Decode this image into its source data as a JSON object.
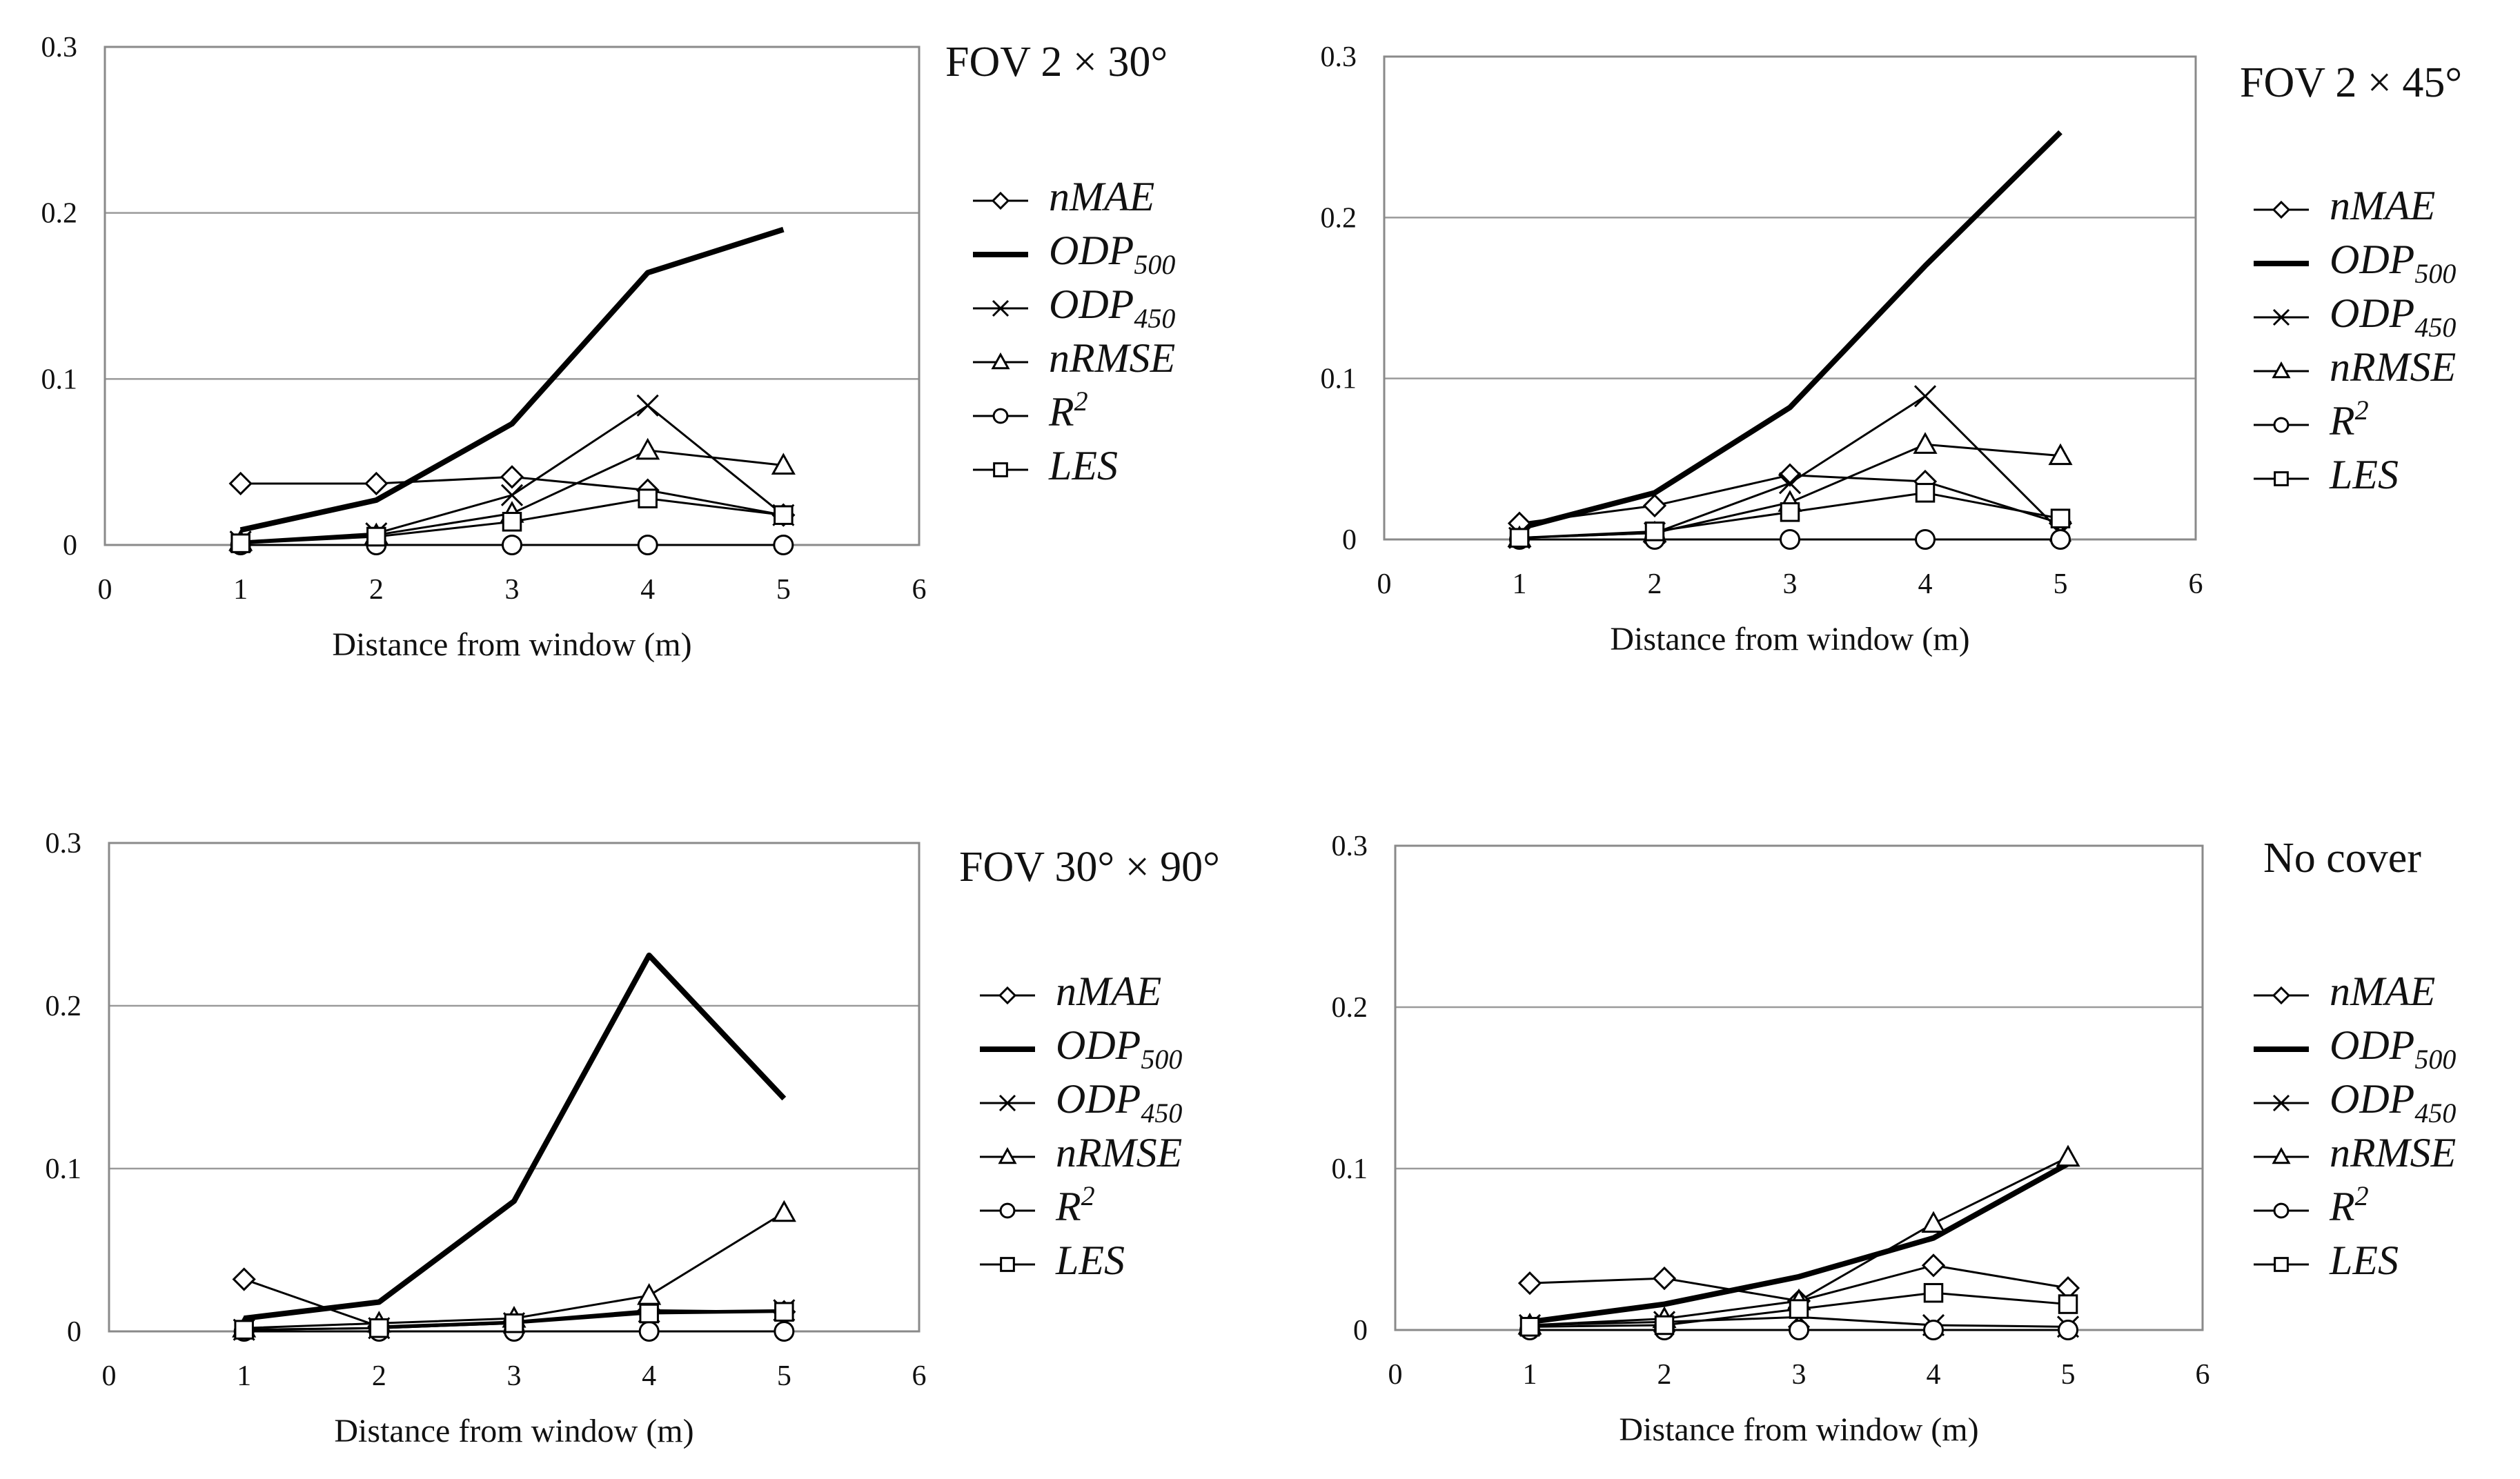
{
  "chart_data": [
    {
      "type": "line",
      "title": "FOV  2 × 30°",
      "xlabel": "Distance from window  (m)",
      "ylabel": "",
      "xlim": [
        0,
        6
      ],
      "ylim": [
        0,
        0.3
      ],
      "xticks": [
        "0",
        "1",
        "2",
        "3",
        "4",
        "5",
        "6"
      ],
      "yticks": [
        "0",
        "0.1",
        "0.2",
        "0.3"
      ],
      "x": [
        1,
        2,
        3,
        4,
        5
      ],
      "series": [
        {
          "key": "nMAE",
          "name": "nMAE",
          "sub": "",
          "marker": "diamond",
          "values": [
            0.037,
            0.037,
            0.041,
            0.033,
            0.018
          ]
        },
        {
          "key": "ODP500",
          "name": "ODP",
          "sub": "500",
          "marker": "none",
          "values": [
            0.009,
            0.027,
            0.073,
            0.164,
            0.19
          ]
        },
        {
          "key": "ODP450",
          "name": "ODP",
          "sub": "450",
          "marker": "x",
          "values": [
            0.002,
            0.007,
            0.03,
            0.084,
            0.018
          ]
        },
        {
          "key": "nRMSE",
          "name": "nRMSE",
          "sub": "",
          "marker": "triangle",
          "values": [
            0.002,
            0.006,
            0.019,
            0.057,
            0.048
          ]
        },
        {
          "key": "R2",
          "name": "R",
          "sub": "",
          "sup": "2",
          "marker": "circle",
          "values": [
            0.0,
            0.0,
            0.0,
            0.0,
            0.0
          ]
        },
        {
          "key": "LES",
          "name": "LES",
          "sub": "",
          "marker": "square",
          "values": [
            0.001,
            0.005,
            0.014,
            0.028,
            0.018
          ]
        }
      ]
    },
    {
      "type": "line",
      "title": "FOV  2 × 45°",
      "xlabel": "Distance from window  (m)",
      "ylabel": "",
      "xlim": [
        0,
        6
      ],
      "ylim": [
        0,
        0.3
      ],
      "xticks": [
        "0",
        "1",
        "2",
        "3",
        "4",
        "5",
        "6"
      ],
      "yticks": [
        "0",
        "0.1",
        "0.2",
        "0.3"
      ],
      "x": [
        1,
        2,
        3,
        4,
        5
      ],
      "series": [
        {
          "key": "nMAE",
          "name": "nMAE",
          "sub": "",
          "marker": "diamond",
          "values": [
            0.01,
            0.021,
            0.04,
            0.036,
            0.01
          ]
        },
        {
          "key": "ODP500",
          "name": "ODP",
          "sub": "500",
          "marker": "none",
          "values": [
            0.007,
            0.029,
            0.082,
            0.17,
            0.253
          ]
        },
        {
          "key": "ODP450",
          "name": "ODP",
          "sub": "450",
          "marker": "x",
          "values": [
            0.001,
            0.004,
            0.035,
            0.089,
            0.005
          ]
        },
        {
          "key": "nRMSE",
          "name": "nRMSE",
          "sub": "",
          "marker": "triangle",
          "values": [
            0.001,
            0.004,
            0.023,
            0.059,
            0.052
          ]
        },
        {
          "key": "R2",
          "name": "R",
          "sub": "",
          "sup": "2",
          "marker": "circle",
          "values": [
            0.0,
            0.0,
            0.0,
            0.0,
            0.0
          ]
        },
        {
          "key": "LES",
          "name": "LES",
          "sub": "",
          "marker": "square",
          "values": [
            0.001,
            0.005,
            0.017,
            0.029,
            0.013
          ]
        }
      ]
    },
    {
      "type": "line",
      "title": "FOV  30° × 90°",
      "xlabel": "Distance from window  (m)",
      "ylabel": "",
      "xlim": [
        0,
        6
      ],
      "ylim": [
        0,
        0.3
      ],
      "xticks": [
        "0",
        "1",
        "2",
        "3",
        "4",
        "5",
        "6"
      ],
      "yticks": [
        "0",
        "0.1",
        "0.2",
        "0.3"
      ],
      "x": [
        1,
        2,
        3,
        4,
        5
      ],
      "series": [
        {
          "key": "nMAE",
          "name": "nMAE",
          "sub": "",
          "marker": "diamond",
          "values": [
            0.032,
            0.003,
            0.006,
            0.013,
            0.012
          ]
        },
        {
          "key": "ODP500",
          "name": "ODP",
          "sub": "500",
          "marker": "none",
          "values": [
            0.008,
            0.018,
            0.08,
            0.231,
            0.143
          ]
        },
        {
          "key": "ODP450",
          "name": "ODP",
          "sub": "450",
          "marker": "x",
          "values": [
            0.001,
            0.002,
            0.005,
            0.012,
            0.013
          ]
        },
        {
          "key": "nRMSE",
          "name": "nRMSE",
          "sub": "",
          "marker": "triangle",
          "values": [
            0.002,
            0.005,
            0.008,
            0.022,
            0.073
          ]
        },
        {
          "key": "R2",
          "name": "R",
          "sub": "",
          "sup": "2",
          "marker": "circle",
          "values": [
            0.0,
            0.0,
            0.0,
            0.0,
            0.0
          ]
        },
        {
          "key": "LES",
          "name": "LES",
          "sub": "",
          "marker": "square",
          "values": [
            0.001,
            0.002,
            0.005,
            0.011,
            0.012
          ]
        }
      ]
    },
    {
      "type": "line",
      "title": "No cover",
      "xlabel": "Distance from window  (m)",
      "ylabel": "",
      "xlim": [
        0,
        6
      ],
      "ylim": [
        0,
        0.3
      ],
      "xticks": [
        "0",
        "1",
        "2",
        "3",
        "4",
        "5",
        "6"
      ],
      "yticks": [
        "0",
        "0.1",
        "0.2",
        "0.3"
      ],
      "x": [
        1,
        2,
        3,
        4,
        5
      ],
      "series": [
        {
          "key": "nMAE",
          "name": "nMAE",
          "sub": "",
          "marker": "diamond",
          "values": [
            0.029,
            0.032,
            0.018,
            0.04,
            0.026
          ]
        },
        {
          "key": "ODP500",
          "name": "ODP",
          "sub": "500",
          "marker": "none",
          "values": [
            0.005,
            0.016,
            0.033,
            0.057,
            0.103
          ]
        },
        {
          "key": "ODP450",
          "name": "ODP",
          "sub": "450",
          "marker": "x",
          "values": [
            0.003,
            0.005,
            0.008,
            0.003,
            0.002
          ]
        },
        {
          "key": "nRMSE",
          "name": "nRMSE",
          "sub": "",
          "marker": "triangle",
          "values": [
            0.003,
            0.007,
            0.018,
            0.066,
            0.107
          ]
        },
        {
          "key": "R2",
          "name": "R",
          "sub": "",
          "sup": "2",
          "marker": "circle",
          "values": [
            0.0,
            0.0,
            0.0,
            0.0,
            0.0
          ]
        },
        {
          "key": "LES",
          "name": "LES",
          "sub": "",
          "marker": "square",
          "values": [
            0.002,
            0.003,
            0.013,
            0.023,
            0.016
          ]
        }
      ]
    }
  ]
}
